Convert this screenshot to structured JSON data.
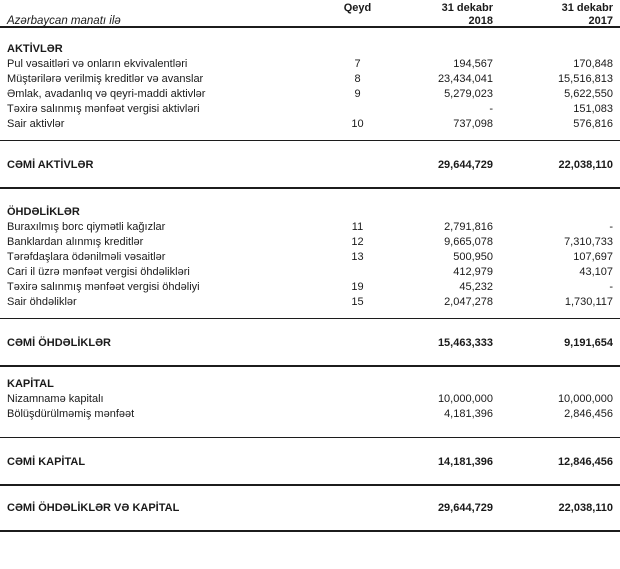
{
  "document": {
    "currency_note": "Azərbaycan manatı ilə",
    "header": {
      "note_col": "Qeyd",
      "col_2018": {
        "line1": "31 dekabr",
        "line2": "2018"
      },
      "col_2017": {
        "line1": "31 dekabr",
        "line2": "2017"
      }
    },
    "sections": [
      {
        "heading": "AKTİVLƏR",
        "rows": [
          {
            "label": "Pul vəsaitləri və onların ekvivalentləri",
            "note": "7",
            "v2018": "194,567",
            "v2017": "170,848"
          },
          {
            "label": "Müştərilərə verilmiş kreditlər və avanslar",
            "note": "8",
            "v2018": "23,434,041",
            "v2017": "15,516,813"
          },
          {
            "label": "Əmlak, avadanlıq və qeyri-maddi aktivlər",
            "note": "9",
            "v2018": "5,279,023",
            "v2017": "5,622,550"
          },
          {
            "label": "Təxirə salınmış mənfəət vergisi aktivləri",
            "note": "",
            "v2018": "-",
            "v2017": "151,083"
          },
          {
            "label": "Sair aktivlər",
            "note": "10",
            "v2018": "737,098",
            "v2017": "576,816"
          }
        ],
        "total": {
          "label": "CƏMİ AKTİVLƏR",
          "v2018": "29,644,729",
          "v2017": "22,038,110"
        }
      },
      {
        "heading": "ÖHDƏLİKLƏR",
        "rows": [
          {
            "label": "Buraxılmış borc qiymətli kağızlar",
            "note": "11",
            "v2018": "2,791,816",
            "v2017": "-"
          },
          {
            "label": "Banklardan alınmış kreditlər",
            "note": "12",
            "v2018": "9,665,078",
            "v2017": "7,310,733"
          },
          {
            "label": "Tərəfdaşlara ödənilməli vəsaitlər",
            "note": "13",
            "v2018": "500,950",
            "v2017": "107,697"
          },
          {
            "label": "Cari il üzrə mənfəət vergisi öhdəlikləri",
            "note": "",
            "v2018": "412,979",
            "v2017": "43,107"
          },
          {
            "label": "Təxirə salınmış mənfəət vergisi öhdəliyi",
            "note": "19",
            "v2018": "45,232",
            "v2017": "-"
          },
          {
            "label": "Sair öhdəliklər",
            "note": "15",
            "v2018": "2,047,278",
            "v2017": "1,730,117"
          }
        ],
        "total": {
          "label": "CƏMİ ÖHDƏLİKLƏR",
          "v2018": "15,463,333",
          "v2017": "9,191,654"
        }
      },
      {
        "heading": "KAPİTAL",
        "rows": [
          {
            "label": "Nizamnamə kapitalı",
            "note": "",
            "v2018": "10,000,000",
            "v2017": "10,000,000"
          },
          {
            "label": "Bölüşdürülməmiş mənfəət",
            "note": "",
            "v2018": "4,181,396",
            "v2017": "2,846,456"
          }
        ],
        "total": {
          "label": "CƏMİ KAPİTAL",
          "v2018": "14,181,396",
          "v2017": "12,846,456"
        }
      }
    ],
    "grand_total": {
      "label": "CƏMİ ÖHDƏLİKLƏR VƏ KAPİTAL",
      "v2018": "29,644,729",
      "v2017": "22,038,110"
    }
  }
}
